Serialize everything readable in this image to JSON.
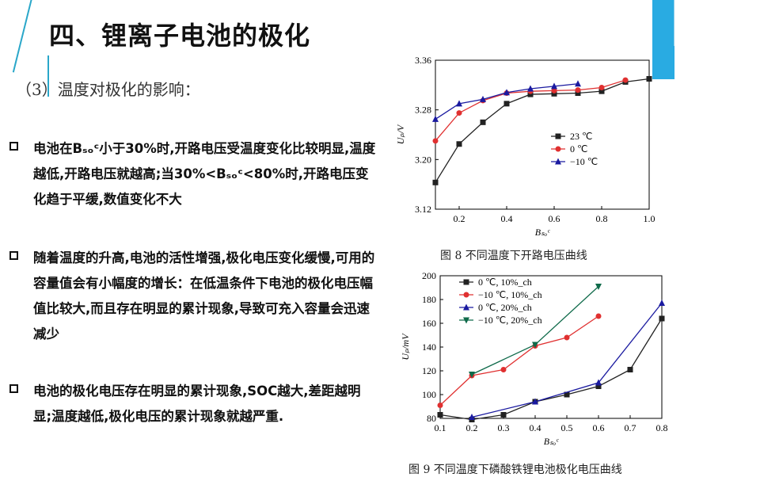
{
  "slide": {
    "title": "四、锂离子电池的极化",
    "subtitle": "（3）温度对极化的影响：",
    "bullets": [
      "电池在Bₛₒᶜ小于30%时,开路电压受温度变化比较明显,温度越低,开路电压就越高;当30%<Bₛₒᶜ<80%时,开路电压变化趋于平缓,数值变化不大",
      "随着温度的升高,电池的活性增强,极化电压变化缓慢,可用的容量值会有小幅度的增长：在低温条件下电池的极化电压幅值比较大,而且存在明显的累计现象,导致可充入容量会迅速减少",
      "电池的极化电压存在明显的累计现象,SOC越大,差距越明显;温度越低,极化电压的累计现象就越严重."
    ],
    "accent_color": "#29abe2"
  },
  "chart_data": [
    {
      "type": "line",
      "caption": "图 8   不同温度下开路电压曲线",
      "xlabel": "B_SOC",
      "ylabel": "U_p/V",
      "xlim": [
        0.1,
        1.0
      ],
      "ylim": [
        3.12,
        3.36
      ],
      "xticks": [
        0.2,
        0.4,
        0.6,
        0.8,
        1.0
      ],
      "yticks": [
        3.12,
        3.2,
        3.28,
        3.36
      ],
      "series": [
        {
          "name": "23 ℃",
          "marker": "square",
          "color": "#222222",
          "x": [
            0.1,
            0.2,
            0.3,
            0.4,
            0.5,
            0.6,
            0.7,
            0.8,
            0.9,
            1.0
          ],
          "y": [
            3.163,
            3.225,
            3.26,
            3.29,
            3.305,
            3.306,
            3.307,
            3.31,
            3.325,
            3.33
          ]
        },
        {
          "name": "0 ℃",
          "marker": "circle",
          "color": "#e03030",
          "x": [
            0.1,
            0.2,
            0.3,
            0.4,
            0.5,
            0.6,
            0.7,
            0.8,
            0.9
          ],
          "y": [
            3.23,
            3.275,
            3.295,
            3.307,
            3.31,
            3.311,
            3.312,
            3.316,
            3.328
          ]
        },
        {
          "name": "−10 ℃",
          "marker": "triangle",
          "color": "#1a1aa0",
          "x": [
            0.1,
            0.2,
            0.3,
            0.4,
            0.5,
            0.6,
            0.7
          ],
          "y": [
            3.265,
            3.29,
            3.297,
            3.308,
            3.314,
            3.318,
            3.322
          ]
        }
      ],
      "legend": "center-right"
    },
    {
      "type": "line",
      "caption": "图 9   不同温度下磷酸铁锂电池极化电压曲线",
      "xlabel": "B_SOC",
      "ylabel": "U_p/mV",
      "xlim": [
        0.1,
        0.8
      ],
      "ylim": [
        80,
        200
      ],
      "xticks": [
        0.1,
        0.2,
        0.3,
        0.4,
        0.5,
        0.6,
        0.7,
        0.8
      ],
      "yticks": [
        80,
        100,
        120,
        140,
        160,
        180,
        200
      ],
      "series": [
        {
          "name": "0 ℃, 10%_ch",
          "marker": "square",
          "color": "#222222",
          "x": [
            0.1,
            0.2,
            0.3,
            0.4,
            0.5,
            0.6,
            0.7,
            0.8
          ],
          "y": [
            83,
            79,
            83,
            94,
            100,
            107,
            121,
            164
          ]
        },
        {
          "name": "−10 ℃, 10%_ch",
          "marker": "circle",
          "color": "#e03030",
          "x": [
            0.1,
            0.2,
            0.3,
            0.4,
            0.5,
            0.6
          ],
          "y": [
            91,
            116,
            121,
            141,
            148,
            166
          ]
        },
        {
          "name": "0 ℃, 20%_ch",
          "marker": "triangle",
          "color": "#1a1aa0",
          "x": [
            0.1,
            0.2,
            0.4,
            0.6,
            0.8
          ],
          "y": [
            null,
            81,
            94,
            110,
            177
          ]
        },
        {
          "name": "−10 ℃, 20%_ch",
          "marker": "triangle-down",
          "color": "#0f6a4a",
          "x": [
            0.2,
            0.4,
            0.6
          ],
          "y": [
            117,
            142,
            191
          ]
        }
      ],
      "legend": "top-left"
    }
  ]
}
